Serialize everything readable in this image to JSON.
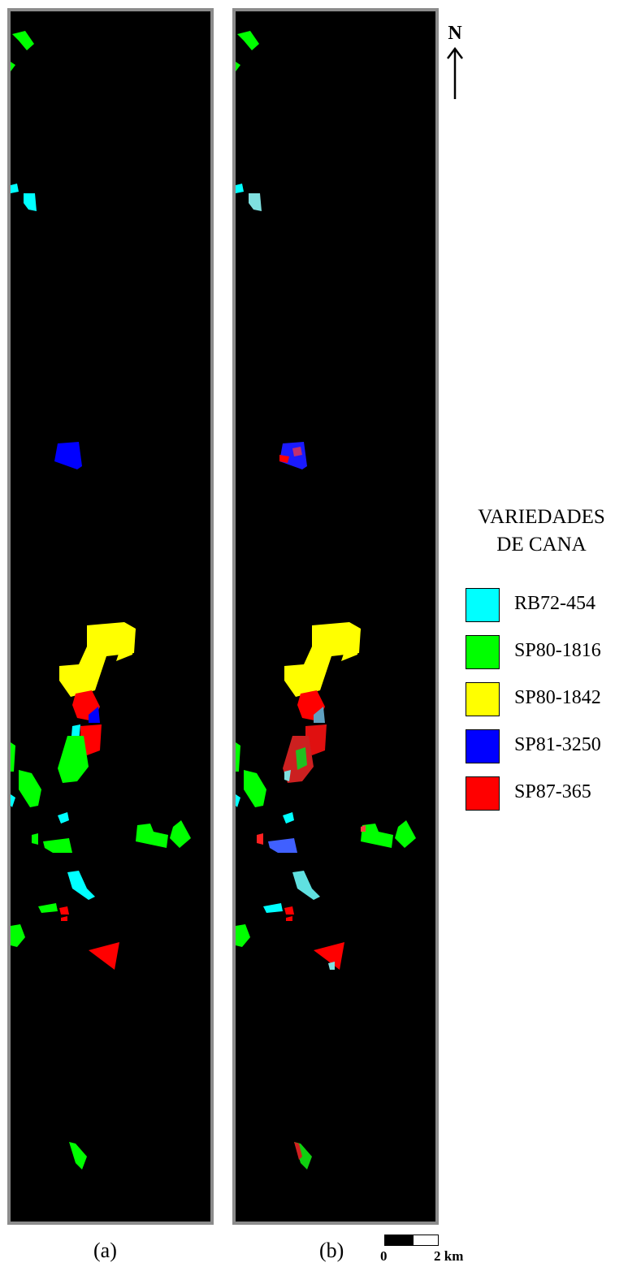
{
  "panels": [
    {
      "caption": "(a)"
    },
    {
      "caption": "(b)"
    }
  ],
  "north": {
    "label": "N"
  },
  "legend": {
    "title_line1": "VARIEDADES",
    "title_line2": "DE CANA",
    "items": [
      {
        "label": "RB72-454",
        "color": "#00ffff"
      },
      {
        "label": "SP80-1816",
        "color": "#00ff00"
      },
      {
        "label": "SP80-1842",
        "color": "#ffff00"
      },
      {
        "label": "SP81-3250",
        "color": "#0000ff"
      },
      {
        "label": "SP87-365",
        "color": "#ff0000"
      }
    ]
  },
  "scalebar": {
    "start_label": "0",
    "end_label": "2 km"
  },
  "colors": {
    "background": "#000000",
    "frame": "#8c8c8c",
    "rb72": "#00ffff",
    "sp80_1816": "#00ff00",
    "sp80_1842": "#ffff00",
    "sp81": "#0000ff",
    "sp87": "#ff0000"
  }
}
